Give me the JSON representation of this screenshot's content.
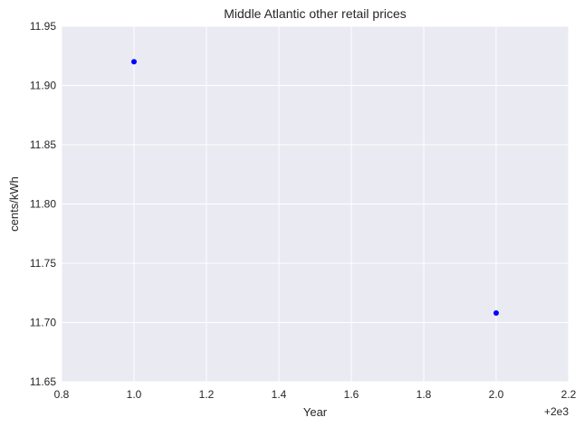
{
  "chart_data": {
    "type": "scatter",
    "title": "Middle Atlantic   other retail prices",
    "xlabel": "Year",
    "ylabel": "cents/kWh",
    "x_offset_label": "+2e3",
    "xlim": [
      0.8,
      2.2
    ],
    "ylim": [
      11.65,
      11.95
    ],
    "x_ticks": [
      "0.8",
      "1.0",
      "1.2",
      "1.4",
      "1.6",
      "1.8",
      "2.0",
      "2.2"
    ],
    "y_ticks": [
      "11.65",
      "11.70",
      "11.75",
      "11.80",
      "11.85",
      "11.90",
      "11.95"
    ],
    "grid": true,
    "marker_color": "#0000ff",
    "background_color": "#eaeaf2",
    "points": [
      {
        "x": 1.0,
        "y": 11.92
      },
      {
        "x": 2.0,
        "y": 11.708
      }
    ]
  }
}
